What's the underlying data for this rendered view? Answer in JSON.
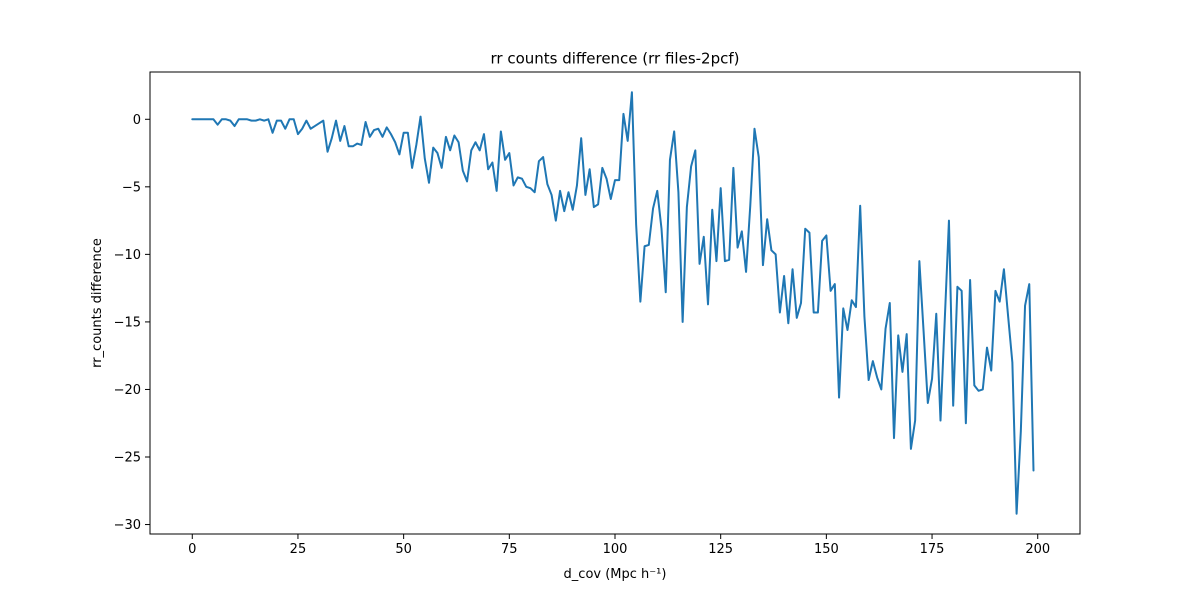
{
  "chart_data": {
    "type": "line",
    "title": "rr counts difference (rr files-2pcf)",
    "xlabel": "d_cov (Mpc h⁻¹)",
    "ylabel": "rr_counts difference",
    "xlim": [
      -10,
      210
    ],
    "ylim": [
      -30.7,
      3.5
    ],
    "xticks": [
      0,
      25,
      50,
      75,
      100,
      125,
      150,
      175,
      200
    ],
    "yticks": [
      0,
      -5,
      -10,
      -15,
      -20,
      -25,
      -30
    ],
    "xtick_labels": [
      "0",
      "25",
      "50",
      "75",
      "100",
      "125",
      "150",
      "175",
      "200"
    ],
    "ytick_labels": [
      "0",
      "−5",
      "−10",
      "−15",
      "−20",
      "−25",
      "−30"
    ],
    "grid": false,
    "color": "#1f77b4",
    "series": [
      {
        "x": [
          0,
          1,
          2,
          3,
          4,
          5,
          6,
          7,
          8,
          9,
          10,
          11,
          12,
          13,
          14,
          15,
          16,
          17,
          18,
          19,
          20,
          21,
          22,
          23,
          24,
          25,
          26,
          27,
          28,
          29,
          30,
          31,
          32,
          33,
          34,
          35,
          36,
          37,
          38,
          39,
          40,
          41,
          42,
          43,
          44,
          45,
          46,
          47,
          48,
          49,
          50,
          51,
          52,
          53,
          54,
          55,
          56,
          57,
          58,
          59,
          60,
          61,
          62,
          63,
          64,
          65,
          66,
          67,
          68,
          69,
          70,
          71,
          72,
          73,
          74,
          75,
          76,
          77,
          78,
          79,
          80,
          81,
          82,
          83,
          84,
          85,
          86,
          87,
          88,
          89,
          90,
          91,
          92,
          93,
          94,
          95,
          96,
          97,
          98,
          99,
          100,
          101,
          102,
          103,
          104,
          105,
          106,
          107,
          108,
          109,
          110,
          111,
          112,
          113,
          114,
          115,
          116,
          117,
          118,
          119,
          120,
          121,
          122,
          123,
          124,
          125,
          126,
          127,
          128,
          129,
          130,
          131,
          132,
          133,
          134,
          135,
          136,
          137,
          138,
          139,
          140,
          141,
          142,
          143,
          144,
          145,
          146,
          147,
          148,
          149,
          150,
          151,
          152,
          153,
          154,
          155,
          156,
          157,
          158,
          159,
          160,
          161,
          162,
          163,
          164,
          165,
          166,
          167,
          168,
          169,
          170,
          171,
          172,
          173,
          174,
          175,
          176,
          177,
          178,
          179,
          180,
          181,
          182,
          183,
          184,
          185,
          186,
          187,
          188,
          189,
          190,
          191,
          192,
          193,
          194,
          195,
          196,
          197,
          198,
          199
        ],
        "values": [
          0,
          0,
          0,
          0,
          0,
          0,
          -0.4,
          0,
          0,
          -0.1,
          -0.5,
          0,
          0,
          0,
          -0.1,
          -0.1,
          0,
          -0.1,
          0,
          -1.0,
          -0.1,
          -0.1,
          -0.7,
          0,
          0,
          -1.1,
          -0.7,
          -0.1,
          -0.7,
          -0.5,
          -0.3,
          -0.1,
          -2.4,
          -1.4,
          -0.1,
          -1.6,
          -0.5,
          -2.0,
          -2.0,
          -1.8,
          -1.9,
          -0.2,
          -1.3,
          -0.8,
          -0.7,
          -1.3,
          -0.6,
          -1.1,
          -1.7,
          -2.6,
          -1.0,
          -1.0,
          -3.6,
          -1.9,
          0.2,
          -2.9,
          -4.7,
          -2.1,
          -2.5,
          -3.6,
          -1.3,
          -2.3,
          -1.2,
          -1.7,
          -3.8,
          -4.6,
          -2.3,
          -1.7,
          -2.3,
          -1.1,
          -3.7,
          -3.2,
          -5.3,
          -0.9,
          -3.0,
          -2.5,
          -4.9,
          -4.3,
          -4.4,
          -5.0,
          -5.1,
          -5.4,
          -3.1,
          -2.8,
          -4.8,
          -5.6,
          -7.5,
          -5.3,
          -6.8,
          -5.4,
          -6.7,
          -4.9,
          -1.4,
          -5.6,
          -3.7,
          -6.5,
          -6.3,
          -3.6,
          -4.4,
          -5.9,
          -4.5,
          -4.5,
          0.4,
          -1.6,
          2.0,
          -7.8,
          -13.5,
          -9.4,
          -9.3,
          -6.6,
          -5.3,
          -8.1,
          -12.8,
          -3.0,
          -0.9,
          -5.4,
          -15.0,
          -6.5,
          -3.5,
          -2.3,
          -10.7,
          -8.7,
          -13.7,
          -6.7,
          -10.5,
          -5.1,
          -10.5,
          -10.4,
          -3.6,
          -9.5,
          -8.3,
          -11.3,
          -6.4,
          -0.7,
          -2.8,
          -10.8,
          -7.4,
          -9.7,
          -10.0,
          -14.3,
          -11.6,
          -15.1,
          -11.1,
          -14.7,
          -13.6,
          -8.1,
          -8.4,
          -14.3,
          -14.3,
          -9.0,
          -8.6,
          -12.7,
          -12.2,
          -20.6,
          -14.0,
          -15.6,
          -13.4,
          -13.9,
          -6.4,
          -14.6,
          -19.3,
          -17.9,
          -19.1,
          -20.0,
          -15.5,
          -13.6,
          -23.6,
          -16.0,
          -18.7,
          -15.9,
          -24.4,
          -22.3,
          -10.5,
          -15.7,
          -21.0,
          -19.2,
          -14.4,
          -22.3,
          -14.9,
          -7.5,
          -21.2,
          -12.4,
          -12.7,
          -22.5,
          -11.9,
          -19.7,
          -20.1,
          -20.0,
          -16.9,
          -18.6,
          -12.7,
          -13.5,
          -11.1,
          -14.6,
          -18.0,
          -29.2,
          -23.1,
          -13.8,
          -12.2,
          -26.0
        ]
      }
    ]
  }
}
